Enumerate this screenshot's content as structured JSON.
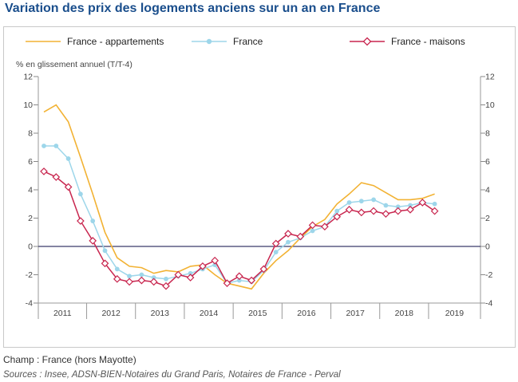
{
  "title": "Variation des prix des logements anciens sur un an en France",
  "footer": {
    "champ": "Champ : France (hors Mayotte)",
    "sources": "Sources : Insee, ADSN-BIEN-Notaires du Grand Paris, Notaires de France - Perval"
  },
  "chart_data": {
    "type": "line",
    "ylabel": "% en glissement annuel (T/T-4)",
    "ylim": [
      -4,
      12
    ],
    "yticks": [
      -4,
      -2,
      0,
      2,
      4,
      6,
      8,
      10,
      12
    ],
    "year_labels": [
      "2011",
      "2012",
      "2013",
      "2014",
      "2015",
      "2016",
      "2017",
      "2018",
      "2019"
    ],
    "x": [
      "2011-T1",
      "2011-T2",
      "2011-T3",
      "2011-T4",
      "2012-T1",
      "2012-T2",
      "2012-T3",
      "2012-T4",
      "2013-T1",
      "2013-T2",
      "2013-T3",
      "2013-T4",
      "2014-T1",
      "2014-T2",
      "2014-T3",
      "2014-T4",
      "2015-T1",
      "2015-T2",
      "2015-T3",
      "2015-T4",
      "2016-T1",
      "2016-T2",
      "2016-T3",
      "2016-T4",
      "2017-T1",
      "2017-T2",
      "2017-T3",
      "2017-T4",
      "2018-T1",
      "2018-T2",
      "2018-T3",
      "2018-T4",
      "2019-T1"
    ],
    "grid": false,
    "legend_position": "top",
    "series": [
      {
        "name": "France - appartements",
        "color": "#f2b233",
        "marker": "none",
        "values": [
          9.5,
          10.0,
          8.8,
          6.3,
          3.7,
          1.0,
          -0.8,
          -1.4,
          -1.5,
          -1.9,
          -1.7,
          -1.8,
          -1.4,
          -1.3,
          -2.0,
          -2.6,
          -2.8,
          -3.0,
          -1.9,
          -1.0,
          -0.3,
          0.6,
          1.4,
          1.9,
          3.0,
          3.7,
          4.5,
          4.3,
          3.8,
          3.3,
          3.3,
          3.4,
          3.7
        ]
      },
      {
        "name": "France",
        "color": "#9dd6ea",
        "marker": "circle",
        "values": [
          7.1,
          7.1,
          6.2,
          3.7,
          1.8,
          -0.3,
          -1.6,
          -2.1,
          -2.0,
          -2.2,
          -2.3,
          -2.1,
          -1.9,
          -1.6,
          -1.3,
          -2.6,
          -2.4,
          -2.5,
          -1.7,
          -0.4,
          0.3,
          0.6,
          1.1,
          1.4,
          2.5,
          3.1,
          3.2,
          3.3,
          2.9,
          2.8,
          2.9,
          3.1,
          3.0
        ]
      },
      {
        "name": "France - maisons",
        "color": "#c8254e",
        "marker": "diamond",
        "values": [
          5.3,
          4.9,
          4.2,
          1.8,
          0.4,
          -1.2,
          -2.3,
          -2.5,
          -2.4,
          -2.5,
          -2.8,
          -2.0,
          -2.2,
          -1.4,
          -1.0,
          -2.6,
          -2.1,
          -2.4,
          -1.6,
          0.2,
          0.9,
          0.7,
          1.5,
          1.4,
          2.1,
          2.6,
          2.4,
          2.5,
          2.3,
          2.5,
          2.6,
          3.1,
          2.5
        ]
      }
    ]
  }
}
